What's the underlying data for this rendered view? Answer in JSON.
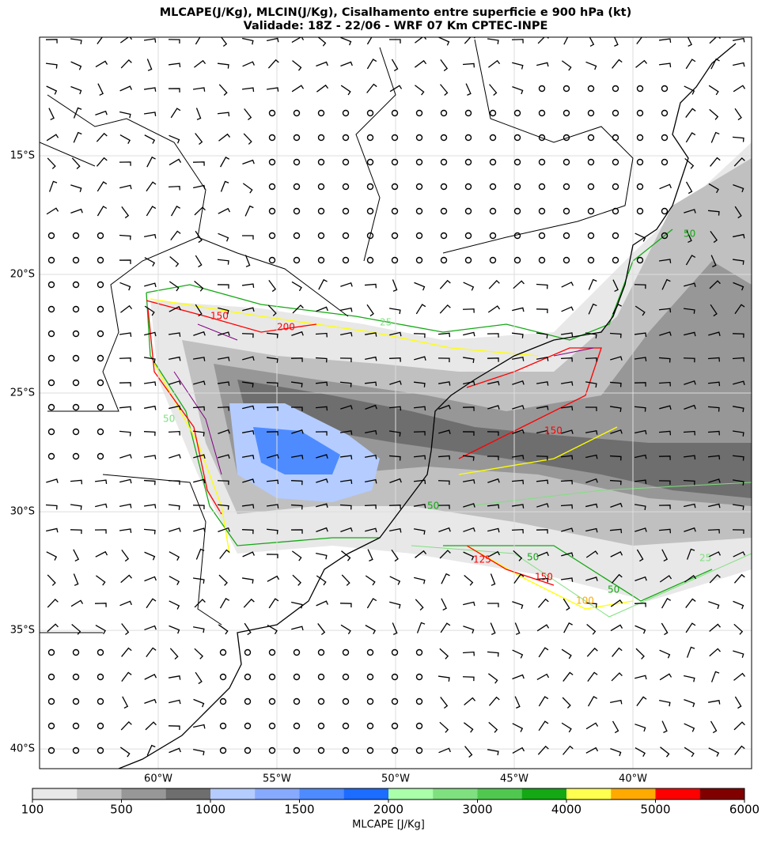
{
  "map": {
    "title": "MLCAPE(J/Kg), MLCIN(J/Kg), Cisalhamento entre superficie e 900 hPa (kt)",
    "subtitle": "Validade: 18Z - 22/06 - WRF 07 Km CPTEC-INPE",
    "xlim": [
      -65,
      -35
    ],
    "ylim": [
      -40.83,
      -10
    ],
    "lat_ticks": [
      {
        "value": -15,
        "label": "15°S"
      },
      {
        "value": -20,
        "label": "20°S"
      },
      {
        "value": -25,
        "label": "25°S"
      },
      {
        "value": -30,
        "label": "30°S"
      },
      {
        "value": -35,
        "label": "35°S"
      },
      {
        "value": -40,
        "label": "40°S"
      }
    ],
    "lon_ticks": [
      {
        "value": -60,
        "label": "60°W"
      },
      {
        "value": -55,
        "label": "55°W"
      },
      {
        "value": -50,
        "label": "50°W"
      },
      {
        "value": -45,
        "label": "45°W"
      },
      {
        "value": -40,
        "label": "40°W"
      }
    ],
    "contour_labels": [
      "150",
      "150",
      "200",
      "25",
      "50",
      "50",
      "50",
      "125",
      "150",
      "100",
      "50",
      "25",
      "50"
    ],
    "colorbar": {
      "label": "MLCAPE [J/Kg]",
      "ticks": [
        100,
        500,
        1000,
        1500,
        2000,
        3000,
        4000,
        5000,
        6000
      ],
      "colors": [
        "#e8e8e8",
        "#c0c0c0",
        "#979797",
        "#6e6e6e",
        "#b4ccff",
        "#87aaff",
        "#4e8bff",
        "#1b6cff",
        "#aaffaa",
        "#7fe07f",
        "#50c850",
        "#14a814",
        "#ffff50",
        "#ffaa00",
        "#ff0000",
        "#800000"
      ]
    }
  }
}
